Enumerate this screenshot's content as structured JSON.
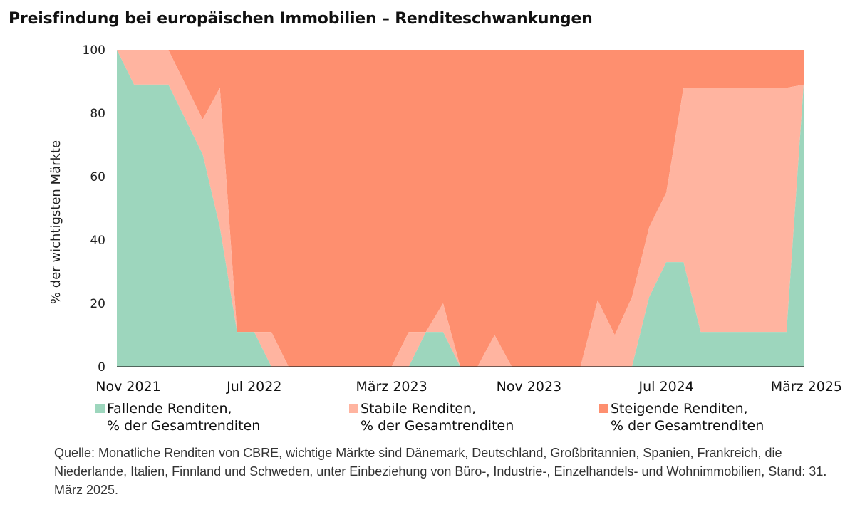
{
  "title": "Preisfindung bei europäischen Immobilien – Renditeschwankungen",
  "footnote": "Quelle: Monatliche Renditen von CBRE, wichtige Märkte sind Dänemark, Deutschland, Großbritannien, Spanien, Frankreich, die Niederlande, Italien, Finnland und Schweden, unter Einbeziehung von Büro-, Industrie-, Einzelhandels- und Wohnimmobilien, Stand: 31. März 2025.",
  "legend": [
    {
      "line1": "Fallende Renditen,",
      "line2": "% der Gesamtrenditen",
      "color": "#9dd6bd"
    },
    {
      "line1": "Stabile Renditen,",
      "line2": "% der Gesamtrenditen",
      "color": "#ffb4a0"
    },
    {
      "line1": "Steigende Renditen,",
      "line2": "% der Gesamtrenditen",
      "color": "#fe8f6f"
    }
  ],
  "chart_data": {
    "type": "area",
    "stacked": true,
    "ylabel": "% der wichtigsten Märkte",
    "ylim": [
      0,
      100
    ],
    "yticks": [
      0,
      20,
      40,
      60,
      80,
      100
    ],
    "x": [
      "Nov 2021",
      "Dez 2021",
      "Jan 2022",
      "Feb 2022",
      "März 2022",
      "Apr 2022",
      "Mai 2022",
      "Jun 2022",
      "Jul 2022",
      "Aug 2022",
      "Sep 2022",
      "Okt 2022",
      "Nov 2022",
      "Dez 2022",
      "Jan 2023",
      "Feb 2023",
      "März 2023",
      "Apr 2023",
      "Mai 2023",
      "Jun 2023",
      "Jul 2023",
      "Aug 2023",
      "Sep 2023",
      "Okt 2023",
      "Nov 2023",
      "Dez 2023",
      "Jan 2024",
      "Feb 2024",
      "März 2024",
      "Apr 2024",
      "Mai 2024",
      "Jun 2024",
      "Jul 2024",
      "Aug 2024",
      "Sep 2024",
      "Okt 2024",
      "Nov 2024",
      "Dez 2024",
      "Jan 2025",
      "Feb 2025",
      "März 2025"
    ],
    "xticks": [
      "Nov 2021",
      "Jul 2022",
      "März 2023",
      "Nov 2023",
      "Jul 2024",
      "März 2025"
    ],
    "series": [
      {
        "name": "Fallende Renditen, % der Gesamtrenditen",
        "color": "#9dd6bd",
        "values": [
          100,
          89,
          89,
          89,
          78,
          67,
          44,
          11,
          11,
          0,
          0,
          0,
          0,
          0,
          0,
          0,
          0,
          0,
          11,
          11,
          0,
          0,
          0,
          0,
          0,
          0,
          0,
          0,
          0,
          0,
          0,
          22,
          33,
          33,
          11,
          11,
          11,
          11,
          11,
          11,
          89
        ]
      },
      {
        "name": "Stabile Renditen, % der Gesamtrenditen",
        "color": "#ffb4a0",
        "values": [
          0,
          11,
          11,
          11,
          11,
          11,
          44,
          0,
          0,
          11,
          0,
          0,
          0,
          0,
          0,
          0,
          0,
          11,
          0,
          9,
          0,
          0,
          10,
          0,
          0,
          0,
          0,
          0,
          21,
          10,
          22,
          22,
          22,
          55,
          77,
          77,
          77,
          77,
          77,
          77,
          0
        ]
      },
      {
        "name": "Steigende Renditen, % der Gesamtrenditen",
        "color": "#fe8f6f",
        "values": [
          0,
          0,
          0,
          0,
          11,
          22,
          12,
          89,
          89,
          89,
          100,
          100,
          100,
          100,
          100,
          100,
          100,
          89,
          89,
          80,
          100,
          100,
          90,
          100,
          100,
          100,
          100,
          100,
          79,
          90,
          78,
          56,
          45,
          12,
          12,
          12,
          12,
          12,
          12,
          12,
          11
        ]
      }
    ]
  }
}
